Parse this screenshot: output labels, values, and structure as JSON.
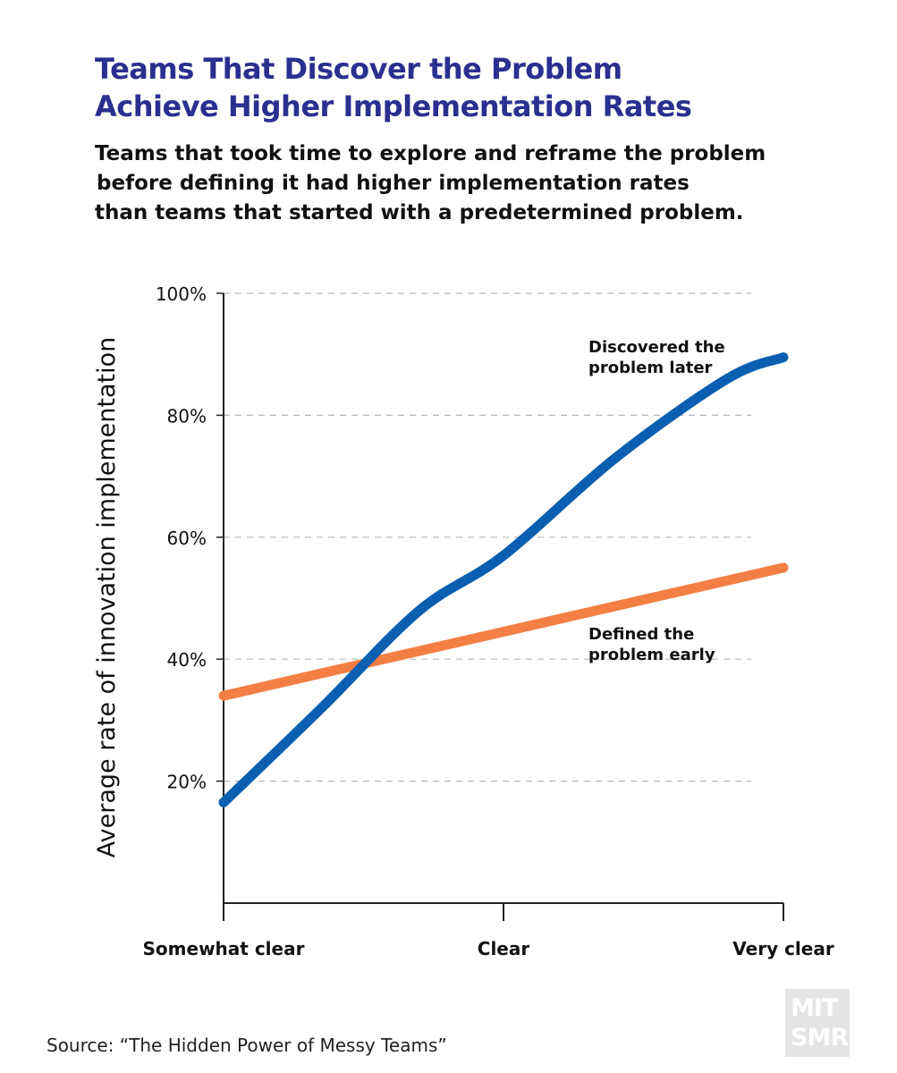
{
  "header": {
    "title_line1": "Teams That Discover the Problem",
    "title_line2": "Achieve Higher Implementation Rates",
    "subtitle_line1": "Teams that took time to explore and reframe the problem",
    "subtitle_line2": "before defining it had higher implementation rates",
    "subtitle_line3": "than teams that started with a predetermined problem."
  },
  "chart_data": {
    "type": "line",
    "title": "Teams That Discover the Problem Achieve Higher Implementation Rates",
    "xlabel": "",
    "ylabel": "Average rate of innovation implementation",
    "categories": [
      "Somewhat clear",
      "Clear",
      "Very clear"
    ],
    "ylim": [
      0,
      100
    ],
    "yticks": [
      20,
      40,
      60,
      80,
      100
    ],
    "ytick_labels": [
      "20%",
      "40%",
      "60%",
      "80%",
      "100%"
    ],
    "grid": true,
    "series": [
      {
        "name": "Discovered the problem later",
        "label_line1": "Discovered the",
        "label_line2": "problem later",
        "color": "#0a5fb0",
        "points": [
          [
            0,
            16.5
          ],
          [
            0.35,
            32
          ],
          [
            0.7,
            48
          ],
          [
            1.0,
            57
          ],
          [
            1.4,
            73
          ],
          [
            1.8,
            86
          ],
          [
            2.0,
            89.5
          ]
        ]
      },
      {
        "name": "Defined the problem early",
        "label_line1": "Defined the",
        "label_line2": "problem early",
        "color": "#f47f44",
        "points": [
          [
            0,
            34
          ],
          [
            2.0,
            55
          ]
        ]
      }
    ]
  },
  "footer": {
    "source": "Source: “The Hidden Power of Messy Teams”",
    "logo_line1": "MIT",
    "logo_line2": "SMR"
  }
}
